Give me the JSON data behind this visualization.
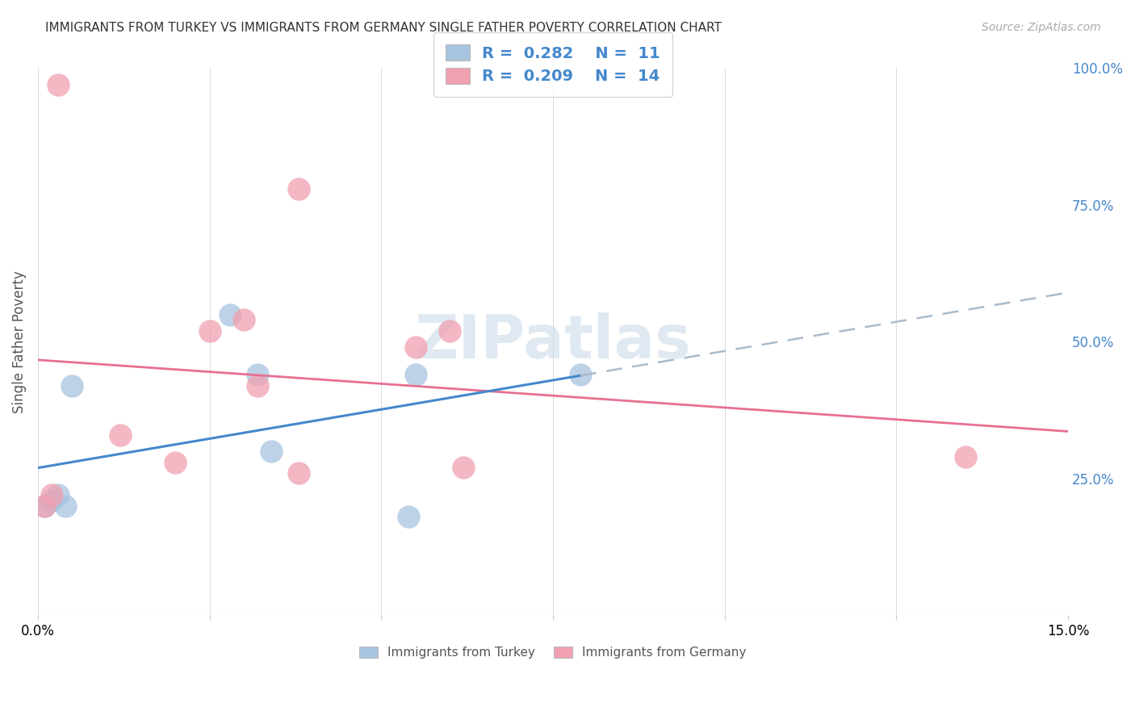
{
  "title": "IMMIGRANTS FROM TURKEY VS IMMIGRANTS FROM GERMANY SINGLE FATHER POVERTY CORRELATION CHART",
  "source": "Source: ZipAtlas.com",
  "ylabel": "Single Father Poverty",
  "x_min": 0.0,
  "x_max": 0.15,
  "y_min": 0.0,
  "y_max": 1.0,
  "x_ticks": [
    0.0,
    0.025,
    0.05,
    0.075,
    0.1,
    0.125,
    0.15
  ],
  "y_ticks_right": [
    0.0,
    0.25,
    0.5,
    0.75,
    1.0
  ],
  "y_tick_labels_right": [
    "",
    "25.0%",
    "50.0%",
    "75.0%",
    "100.0%"
  ],
  "turkey_x": [
    0.001,
    0.002,
    0.003,
    0.004,
    0.005,
    0.028,
    0.032,
    0.034,
    0.054,
    0.055,
    0.079
  ],
  "turkey_y": [
    0.2,
    0.21,
    0.22,
    0.2,
    0.42,
    0.55,
    0.44,
    0.3,
    0.18,
    0.44,
    0.44
  ],
  "germany_x": [
    0.001,
    0.002,
    0.003,
    0.012,
    0.02,
    0.025,
    0.03,
    0.032,
    0.038,
    0.038,
    0.055,
    0.06,
    0.062,
    0.135
  ],
  "germany_y": [
    0.2,
    0.22,
    0.97,
    0.33,
    0.28,
    0.52,
    0.54,
    0.42,
    0.26,
    0.78,
    0.49,
    0.52,
    0.27,
    0.29
  ],
  "turkey_color": "#a8c4e0",
  "germany_color": "#f0a0b0",
  "turkey_line_color": "#4488cc",
  "germany_line_color": "#e87090",
  "turkey_dash_color": "#aabbcc",
  "legend_r_turkey": "0.282",
  "legend_n_turkey": "11",
  "legend_r_germany": "0.209",
  "legend_n_germany": "14",
  "watermark": "ZIPatlas",
  "background_color": "#ffffff",
  "grid_color": "#dddddd"
}
